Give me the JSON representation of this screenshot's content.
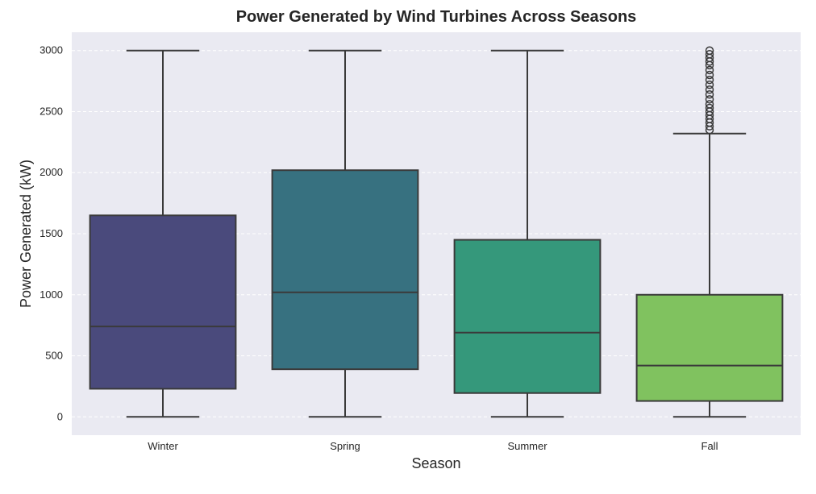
{
  "chart_data": {
    "type": "box",
    "title": "Power Generated by Wind Turbines Across Seasons",
    "xlabel": "Season",
    "ylabel": "Power Generated (kW)",
    "ylim": [
      -150,
      3150
    ],
    "yticks": [
      0,
      500,
      1000,
      1500,
      2000,
      2500,
      3000
    ],
    "grid": true,
    "categories": [
      "Winter",
      "Spring",
      "Summer",
      "Fall"
    ],
    "colors": [
      "#4a4a7c",
      "#377180",
      "#35987b",
      "#80c25f"
    ],
    "boxes": [
      {
        "category": "Winter",
        "whisker_low": 0,
        "q1": 230,
        "median": 740,
        "q3": 1650,
        "whisker_high": 3000,
        "outliers": []
      },
      {
        "category": "Spring",
        "whisker_low": 0,
        "q1": 390,
        "median": 1020,
        "q3": 2020,
        "whisker_high": 3000,
        "outliers": []
      },
      {
        "category": "Summer",
        "whisker_low": 0,
        "q1": 195,
        "median": 690,
        "q3": 1450,
        "whisker_high": 3000,
        "outliers": []
      },
      {
        "category": "Fall",
        "whisker_low": 0,
        "q1": 130,
        "median": 420,
        "q3": 1000,
        "whisker_high": 2320,
        "outliers": [
          2350,
          2380,
          2410,
          2440,
          2470,
          2500,
          2530,
          2560,
          2600,
          2640,
          2680,
          2720,
          2760,
          2800,
          2840,
          2880,
          2910,
          2940,
          2970,
          3000
        ]
      }
    ]
  }
}
